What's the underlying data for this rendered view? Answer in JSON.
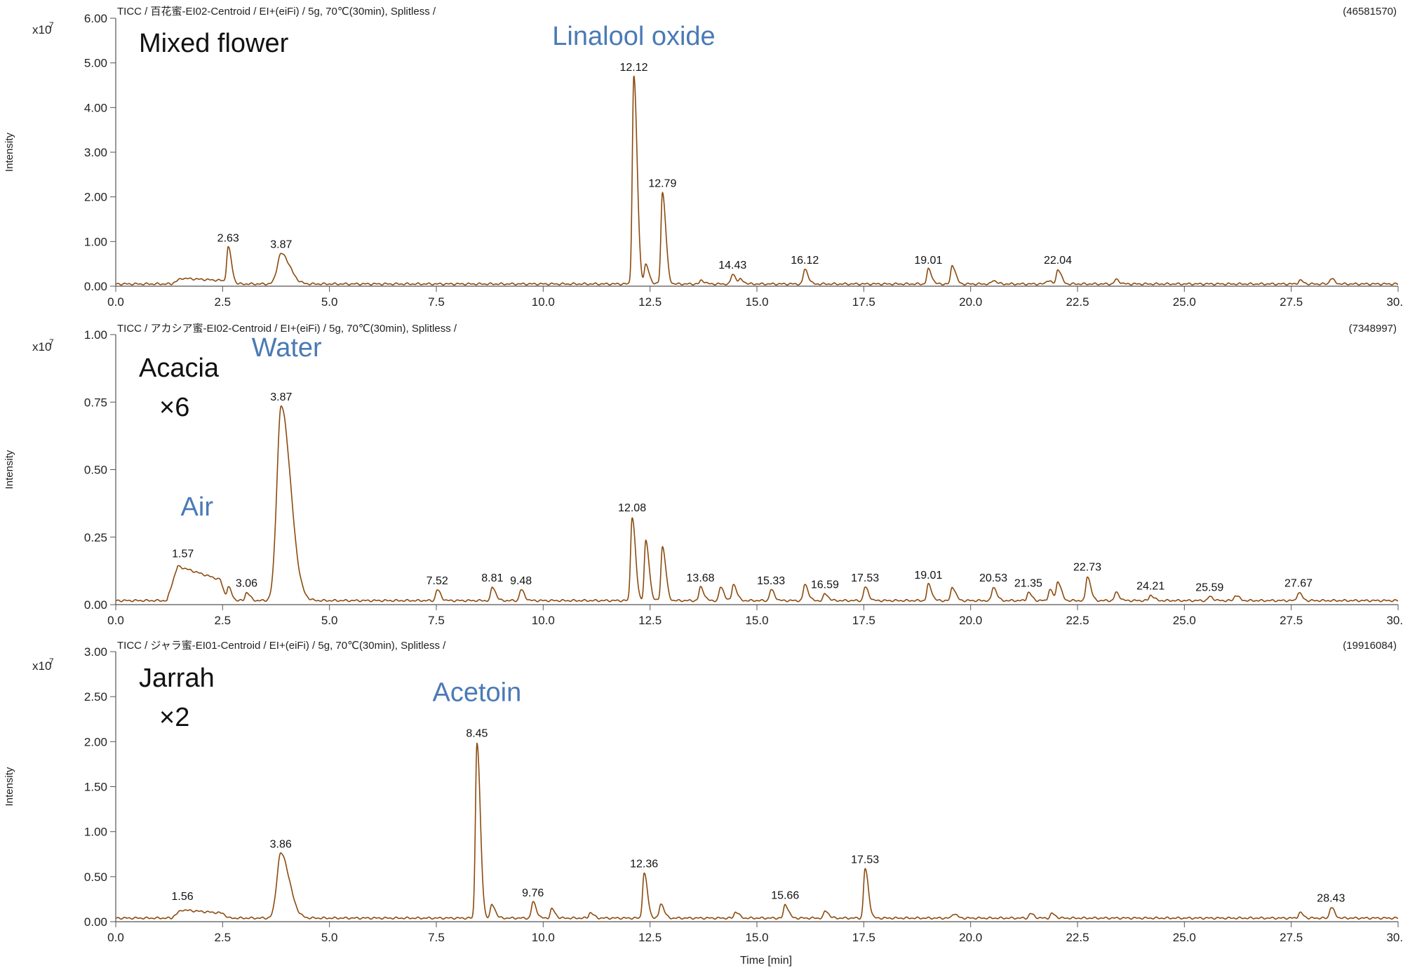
{
  "chart_data": [
    {
      "type": "line",
      "header_left": "TICC / 百花蜜-EI02-Centroid / EI+(eiFi) / 5g, 70℃(30min), Splitless /",
      "header_right": "(46581570)",
      "ylabel": "Intensity",
      "y_multiplier": "x10",
      "y_multiplier_exp": "7",
      "sample_label": "Mixed flower",
      "sample_factor": "",
      "xlim": [
        0,
        30
      ],
      "ylim": [
        0,
        6.0
      ],
      "yticks": [
        "0.00",
        "1.00",
        "2.00",
        "3.00",
        "4.00",
        "5.00",
        "6.00"
      ],
      "ytick_values": [
        0,
        1,
        2,
        3,
        4,
        5,
        6
      ],
      "xticks": [
        "0.0",
        "2.5",
        "5.0",
        "7.5",
        "10.0",
        "12.5",
        "15.0",
        "17.5",
        "20.0",
        "22.5",
        "25.0",
        "27.5",
        "30.0"
      ],
      "xtick_values": [
        0,
        2.5,
        5,
        7.5,
        10,
        12.5,
        15,
        17.5,
        20,
        22.5,
        25,
        27.5,
        30
      ],
      "baseline": 0.05,
      "hump": {
        "x0": 1.3,
        "x1": 2.5,
        "height": 0.14
      },
      "peaks": [
        {
          "x": 2.63,
          "y": 0.82,
          "label": "2.63"
        },
        {
          "x": 3.87,
          "y": 0.68,
          "label": "3.87",
          "width": 0.09
        },
        {
          "x": 12.12,
          "y": 4.65,
          "label": "12.12"
        },
        {
          "x": 12.4,
          "y": 0.42
        },
        {
          "x": 12.79,
          "y": 2.05,
          "label": "12.79"
        },
        {
          "x": 13.7,
          "y": 0.08
        },
        {
          "x": 14.43,
          "y": 0.22,
          "label": "14.43"
        },
        {
          "x": 14.62,
          "y": 0.09
        },
        {
          "x": 16.12,
          "y": 0.33,
          "label": "16.12"
        },
        {
          "x": 19.01,
          "y": 0.33,
          "label": "19.01"
        },
        {
          "x": 19.57,
          "y": 0.42
        },
        {
          "x": 20.53,
          "y": 0.08
        },
        {
          "x": 21.8,
          "y": 0.08
        },
        {
          "x": 22.04,
          "y": 0.33,
          "label": "22.04"
        },
        {
          "x": 23.4,
          "y": 0.1
        },
        {
          "x": 27.7,
          "y": 0.08
        },
        {
          "x": 28.43,
          "y": 0.12
        }
      ],
      "annotations": [
        {
          "text": "Linalool oxide",
          "x": 12.12,
          "y": 5.4
        }
      ]
    },
    {
      "type": "line",
      "header_left": "TICC / アカシア蜜-EI02-Centroid / EI+(eiFi) / 5g, 70℃(30min), Splitless /",
      "header_right": "(7348997)",
      "ylabel": "Intensity",
      "y_multiplier": "x10",
      "y_multiplier_exp": "7",
      "sample_label": "Acacia",
      "sample_factor": "×6",
      "xlim": [
        0,
        30
      ],
      "ylim": [
        0,
        1.0
      ],
      "yticks": [
        "0.00",
        "0.25",
        "0.50",
        "0.75",
        "1.00"
      ],
      "ytick_values": [
        0,
        0.25,
        0.5,
        0.75,
        1.0
      ],
      "xticks": [
        "0.0",
        "2.5",
        "5.0",
        "7.5",
        "10.0",
        "12.5",
        "15.0",
        "17.5",
        "20.0",
        "22.5",
        "25.0",
        "27.5",
        "30.0"
      ],
      "xtick_values": [
        0,
        2.5,
        5,
        7.5,
        10,
        12.5,
        15,
        17.5,
        20,
        22.5,
        25,
        27.5,
        30
      ],
      "baseline": 0.015,
      "hump": {
        "x0": 1.2,
        "x1": 2.45,
        "height": 0.14
      },
      "peaks": [
        {
          "x": 1.57,
          "y": 0.0,
          "label": "1.57",
          "label_y": 0.155
        },
        {
          "x": 2.63,
          "y": 0.05
        },
        {
          "x": 3.06,
          "y": 0.03,
          "label": "3.06"
        },
        {
          "x": 3.87,
          "y": 0.72,
          "label": "3.87",
          "width": 0.1
        },
        {
          "x": 7.52,
          "y": 0.04,
          "label": "7.52"
        },
        {
          "x": 8.81,
          "y": 0.05,
          "label": "8.81"
        },
        {
          "x": 9.48,
          "y": 0.04,
          "label": "9.48"
        },
        {
          "x": 12.08,
          "y": 0.31,
          "label": "12.08"
        },
        {
          "x": 12.4,
          "y": 0.22
        },
        {
          "x": 12.79,
          "y": 0.2
        },
        {
          "x": 13.68,
          "y": 0.05,
          "label": "13.68"
        },
        {
          "x": 14.15,
          "y": 0.05
        },
        {
          "x": 14.45,
          "y": 0.06
        },
        {
          "x": 15.33,
          "y": 0.04,
          "label": "15.33"
        },
        {
          "x": 16.12,
          "y": 0.06
        },
        {
          "x": 16.59,
          "y": 0.025,
          "label": "16.59"
        },
        {
          "x": 17.53,
          "y": 0.05,
          "label": "17.53"
        },
        {
          "x": 19.01,
          "y": 0.06,
          "label": "19.01"
        },
        {
          "x": 19.57,
          "y": 0.05
        },
        {
          "x": 20.53,
          "y": 0.05,
          "label": "20.53"
        },
        {
          "x": 21.35,
          "y": 0.03,
          "label": "21.35"
        },
        {
          "x": 21.85,
          "y": 0.04
        },
        {
          "x": 22.04,
          "y": 0.07
        },
        {
          "x": 22.73,
          "y": 0.09,
          "label": "22.73"
        },
        {
          "x": 23.4,
          "y": 0.03
        },
        {
          "x": 24.21,
          "y": 0.02,
          "label": "24.21"
        },
        {
          "x": 25.59,
          "y": 0.015,
          "label": "25.59"
        },
        {
          "x": 26.2,
          "y": 0.02
        },
        {
          "x": 27.67,
          "y": 0.03,
          "label": "27.67"
        }
      ],
      "annotations": [
        {
          "text": "Water",
          "x": 4.0,
          "y": 0.92
        },
        {
          "text": "Air",
          "x": 1.9,
          "y": 0.33
        }
      ]
    },
    {
      "type": "line",
      "header_left": "TICC / ジャラ蜜-EI01-Centroid / EI+(eiFi) / 5g, 70℃(30min), Splitless /",
      "header_right": "(19916084)",
      "ylabel": "Intensity",
      "xlabel": "Time [min]",
      "y_multiplier": "x10",
      "y_multiplier_exp": "7",
      "sample_label": "Jarrah",
      "sample_factor": "×2",
      "xlim": [
        0,
        30
      ],
      "ylim": [
        0,
        3.0
      ],
      "yticks": [
        "0.00",
        "0.50",
        "1.00",
        "1.50",
        "2.00",
        "2.50",
        "3.00"
      ],
      "ytick_values": [
        0,
        0.5,
        1.0,
        1.5,
        2.0,
        2.5,
        3.0
      ],
      "xticks": [
        "0.0",
        "2.5",
        "5.0",
        "7.5",
        "10.0",
        "12.5",
        "15.0",
        "17.5",
        "20.0",
        "22.5",
        "25.0",
        "27.5",
        "30.0"
      ],
      "xtick_values": [
        0,
        2.5,
        5,
        7.5,
        10,
        12.5,
        15,
        17.5,
        20,
        22.5,
        25,
        27.5,
        30
      ],
      "baseline": 0.04,
      "hump": {
        "x0": 1.3,
        "x1": 2.5,
        "height": 0.1
      },
      "peaks": [
        {
          "x": 1.56,
          "y": 0.0,
          "label": "1.56",
          "label_y": 0.18
        },
        {
          "x": 3.86,
          "y": 0.72,
          "label": "3.86",
          "width": 0.09
        },
        {
          "x": 8.45,
          "y": 1.95,
          "label": "8.45"
        },
        {
          "x": 8.8,
          "y": 0.15
        },
        {
          "x": 9.76,
          "y": 0.18,
          "label": "9.76"
        },
        {
          "x": 10.2,
          "y": 0.1
        },
        {
          "x": 11.1,
          "y": 0.06
        },
        {
          "x": 12.36,
          "y": 0.5,
          "label": "12.36"
        },
        {
          "x": 12.75,
          "y": 0.16
        },
        {
          "x": 14.5,
          "y": 0.07
        },
        {
          "x": 15.66,
          "y": 0.15,
          "label": "15.66"
        },
        {
          "x": 16.6,
          "y": 0.08
        },
        {
          "x": 17.53,
          "y": 0.55,
          "label": "17.53"
        },
        {
          "x": 19.6,
          "y": 0.05
        },
        {
          "x": 21.4,
          "y": 0.05
        },
        {
          "x": 21.9,
          "y": 0.05
        },
        {
          "x": 27.7,
          "y": 0.06
        },
        {
          "x": 28.43,
          "y": 0.12,
          "label": "28.43"
        }
      ],
      "annotations": [
        {
          "text": "Acetoin",
          "x": 8.45,
          "y": 2.45
        }
      ]
    }
  ]
}
